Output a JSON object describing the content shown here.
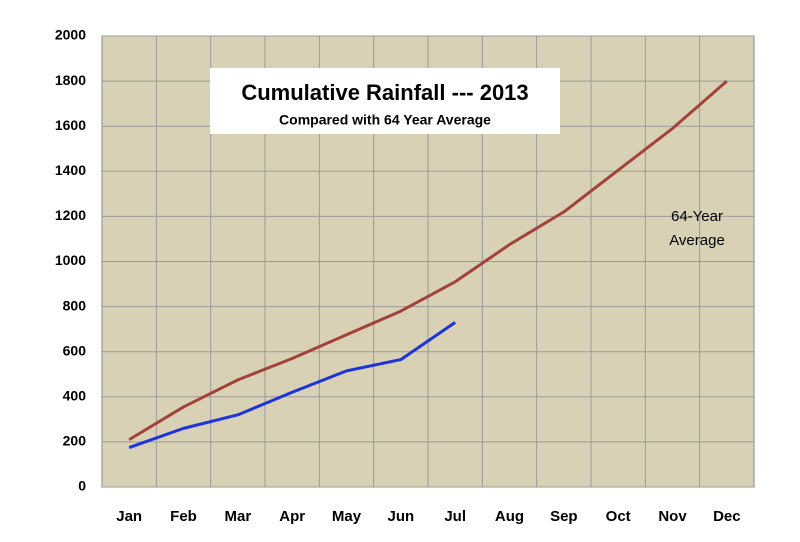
{
  "chart_data": {
    "type": "line",
    "title": "Cumulative Rainfall --- 2013",
    "subtitle": "Compared with 64 Year Average",
    "annotation": [
      "64-Year",
      "Average"
    ],
    "categories": [
      "Jan",
      "Feb",
      "Mar",
      "Apr",
      "May",
      "Jun",
      "Jul",
      "Aug",
      "Sep",
      "Oct",
      "Nov",
      "Dec"
    ],
    "series": [
      {
        "color": "#a3423b",
        "values": [
          210,
          355,
          475,
          570,
          675,
          780,
          910,
          1075,
          1220,
          1405,
          1590,
          1800
        ]
      },
      {
        "color": "#1f34d8",
        "values": [
          175,
          260,
          320,
          420,
          515,
          565,
          730,
          null,
          null,
          null,
          null,
          null
        ]
      }
    ],
    "ylim": [
      0,
      2000
    ],
    "yticks": [
      0,
      200,
      400,
      600,
      800,
      1000,
      1200,
      1400,
      1600,
      1800,
      2000
    ],
    "grid": true,
    "background": "#d8d1b5"
  }
}
